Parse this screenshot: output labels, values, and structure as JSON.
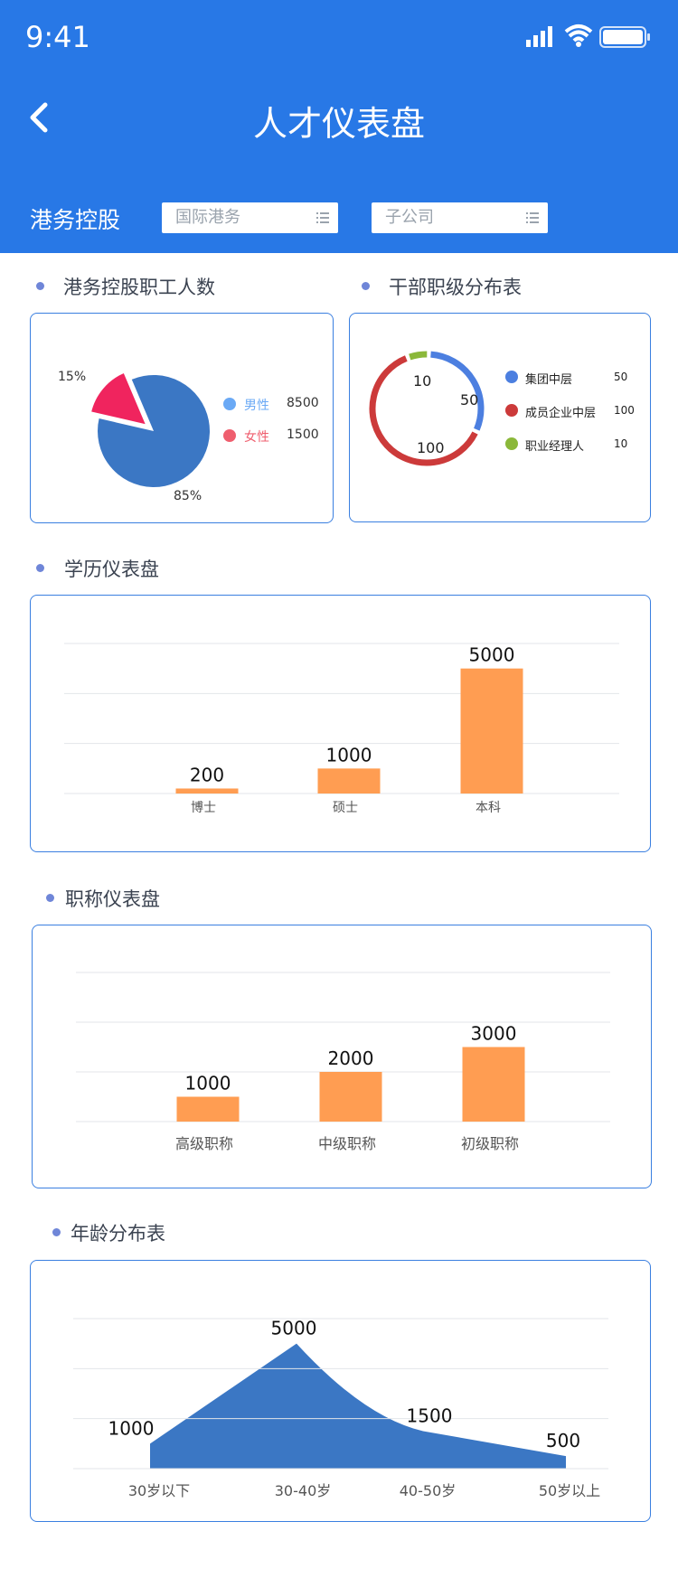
{
  "status": {
    "time": "9:41"
  },
  "header": {
    "title": "人才仪表盘",
    "company": "港务控股"
  },
  "filters": {
    "group": {
      "placeholder": "国际港务"
    },
    "sub": {
      "placeholder": "子公司"
    }
  },
  "staff_count": {
    "title": "港务控股职工人数",
    "legend": [
      {
        "label": "男性",
        "value": "8500",
        "color": "#6aa9f5"
      },
      {
        "label": "女性",
        "value": "1500",
        "color": "#ef5e6e"
      }
    ],
    "slice_labels": [
      "85%",
      "15%"
    ],
    "colors": {
      "male": "#3b77c4",
      "female": "#f0245e"
    }
  },
  "cadre": {
    "title": "干部职级分布表",
    "legend": [
      {
        "label": "集团中层",
        "value": "50",
        "color": "#4c7fe0"
      },
      {
        "label": "成员企业中层",
        "value": "100",
        "color": "#cc3a3a"
      },
      {
        "label": "职业经理人",
        "value": "10",
        "color": "#8bb83a"
      }
    ],
    "ring_labels": [
      "50",
      "100",
      "10"
    ]
  },
  "education": {
    "title": "学历仪表盘"
  },
  "titles": {
    "title": "职称仪表盘"
  },
  "age": {
    "title": "年龄分布表"
  },
  "chart_data": [
    {
      "type": "pie",
      "categories": [
        "男性",
        "女性"
      ],
      "values": [
        8500,
        1500
      ],
      "labels": [
        "85%",
        "15%"
      ]
    },
    {
      "type": "pie",
      "categories": [
        "集团中层",
        "成员企业中层",
        "职业经理人"
      ],
      "values": [
        50,
        100,
        10
      ]
    },
    {
      "type": "bar",
      "categories": [
        "博士",
        "硕士",
        "本科"
      ],
      "values": [
        200,
        1000,
        5000
      ],
      "ylim": [
        0,
        6000
      ],
      "bar_color": "#ff9d52"
    },
    {
      "type": "bar",
      "categories": [
        "高级职称",
        "中级职称",
        "初级职称"
      ],
      "values": [
        1000,
        2000,
        3000
      ],
      "ylim": [
        0,
        6000
      ],
      "bar_color": "#ff9d52"
    },
    {
      "type": "area",
      "categories": [
        "30岁以下",
        "30-40岁",
        "40-50岁",
        "50岁以上"
      ],
      "values": [
        1000,
        5000,
        1500,
        500
      ],
      "ylim": [
        0,
        6000
      ],
      "area_color": "#3b77c4"
    }
  ]
}
